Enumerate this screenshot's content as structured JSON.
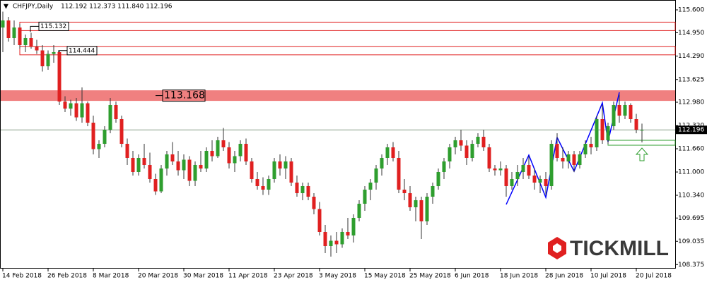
{
  "chart_data": {
    "type": "candlestick",
    "title": "CHFJPY,Daily",
    "ohlc_text": "112.192 112.373 111.840 112.196",
    "logo": "TICKMILL",
    "up_color": "#2e9e2e",
    "down_color": "#e02020",
    "ylim": [
      108.26,
      115.88
    ],
    "yticks": [
      {
        "value": 115.6,
        "label": "115.600"
      },
      {
        "value": 114.95,
        "label": "114.950"
      },
      {
        "value": 114.29,
        "label": "114.290"
      },
      {
        "value": 113.625,
        "label": "113.625"
      },
      {
        "value": 112.98,
        "label": "112.980"
      },
      {
        "value": 112.32,
        "label": "112.320"
      },
      {
        "value": 111.66,
        "label": "111.660"
      },
      {
        "value": 111,
        "label": "111.000"
      },
      {
        "value": 110.34,
        "label": "110.340"
      },
      {
        "value": 109.695,
        "label": "109.695"
      },
      {
        "value": 109.035,
        "label": "109.035"
      },
      {
        "value": 108.375,
        "label": "108.375"
      }
    ],
    "current_price": {
      "value": 112.196,
      "label": "112.196"
    },
    "levels": [
      {
        "value": 115.132,
        "label": "115.132",
        "style": "outline",
        "color": "#e02020"
      },
      {
        "value": 114.444,
        "label": "114.444",
        "style": "outline",
        "color": "#e02020"
      },
      {
        "value": 113.168,
        "label": "113.168",
        "style": "filled",
        "color": "#f08080"
      }
    ],
    "categories": [
      "14 Feb 2018",
      null,
      null,
      null,
      null,
      null,
      null,
      null,
      "26 Feb 2018",
      null,
      null,
      null,
      null,
      null,
      null,
      null,
      "8 Mar 2018",
      null,
      null,
      null,
      null,
      null,
      null,
      null,
      "20 Mar 2018",
      null,
      null,
      null,
      null,
      null,
      null,
      null,
      "30 Mar 2018",
      null,
      null,
      null,
      null,
      null,
      null,
      null,
      "11 Apr 2018",
      null,
      null,
      null,
      null,
      null,
      null,
      null,
      "23 Apr 2018",
      null,
      null,
      null,
      null,
      null,
      null,
      null,
      "3 May 2018",
      null,
      null,
      null,
      null,
      null,
      null,
      null,
      "15 May 2018",
      null,
      null,
      null,
      null,
      null,
      null,
      null,
      "25 May 2018",
      null,
      null,
      null,
      null,
      null,
      null,
      null,
      "6 Jun 2018",
      null,
      null,
      null,
      null,
      null,
      null,
      null,
      "18 Jun 2018",
      null,
      null,
      null,
      null,
      null,
      null,
      null,
      "28 Jun 2018",
      null,
      null,
      null,
      null,
      null,
      null,
      null,
      "10 Jul 2018",
      null,
      null,
      null,
      null,
      null,
      null,
      null,
      "20 Jul 2018",
      null
    ],
    "open": [
      115.1,
      115.3,
      114.8,
      115.1,
      114.6,
      114.8,
      114.55,
      114.45,
      114.0,
      114.35,
      114.4,
      113.0,
      112.8,
      112.95,
      112.55,
      112.95,
      112.4,
      111.65,
      111.8,
      112.2,
      112.9,
      112.5,
      111.8,
      111.4,
      111.0,
      111.4,
      111.2,
      110.8,
      110.45,
      111.1,
      111.5,
      111.3,
      111.05,
      111.35,
      110.75,
      111.2,
      111.1,
      111.6,
      111.45,
      111.9,
      111.7,
      111.25,
      111.45,
      111.8,
      111.3,
      110.8,
      110.6,
      110.5,
      110.8,
      111.3,
      111.1,
      111.3,
      110.7,
      110.4,
      110.6,
      110.3,
      109.95,
      109.3,
      108.9,
      109.05,
      108.95,
      109.3,
      109.2,
      109.7,
      110.1,
      110.5,
      110.7,
      111.1,
      111.4,
      111.7,
      111.4,
      110.5,
      110.4,
      110.0,
      110.2,
      109.6,
      110.3,
      110.6,
      111.0,
      111.3,
      111.7,
      111.9,
      111.75,
      111.4,
      111.8,
      112.0,
      111.7,
      111.1,
      111.05,
      111.1,
      110.6,
      110.8,
      111.0,
      111.2,
      110.9,
      110.7,
      110.8,
      110.6,
      111.8,
      111.4,
      111.3,
      111.5,
      111.2,
      111.5,
      111.8,
      111.7,
      112.5,
      111.9,
      112.3,
      112.9,
      112.6,
      112.9,
      112.5,
      112.192
    ],
    "high": [
      115.55,
      115.4,
      115.3,
      115.2,
      114.9,
      114.95,
      114.75,
      114.6,
      114.45,
      114.6,
      114.45,
      113.15,
      113.05,
      113.1,
      113.4,
      113.0,
      112.6,
      111.9,
      112.3,
      113.1,
      113.0,
      112.6,
      111.95,
      111.6,
      111.5,
      111.8,
      111.55,
      110.95,
      111.2,
      111.6,
      111.85,
      111.6,
      111.5,
      111.45,
      111.3,
      111.6,
      111.7,
      111.9,
      112.0,
      112.25,
      111.85,
      111.6,
      111.9,
      111.95,
      111.4,
      111.0,
      110.85,
      110.9,
      111.4,
      111.5,
      111.45,
      111.4,
      110.9,
      110.7,
      110.7,
      110.4,
      110.15,
      109.5,
      109.2,
      109.3,
      109.4,
      109.7,
      109.8,
      110.2,
      110.6,
      110.8,
      111.2,
      111.5,
      111.8,
      111.85,
      111.6,
      110.8,
      110.6,
      110.3,
      110.3,
      110.4,
      110.7,
      111.1,
      111.4,
      111.8,
      112.0,
      112.2,
      111.9,
      111.9,
      112.1,
      112.2,
      111.8,
      111.2,
      111.3,
      111.2,
      111.0,
      111.2,
      111.4,
      111.45,
      111.1,
      110.9,
      111.0,
      111.9,
      112.1,
      111.7,
      111.6,
      111.6,
      111.6,
      111.9,
      112.0,
      112.6,
      112.9,
      112.4,
      113.0,
      113.2,
      113.0,
      112.95,
      112.65,
      112.373
    ],
    "low": [
      114.4,
      114.7,
      114.6,
      114.5,
      114.4,
      114.5,
      114.35,
      113.85,
      113.9,
      114.1,
      112.9,
      112.7,
      112.6,
      112.45,
      112.4,
      112.3,
      111.5,
      111.4,
      111.7,
      112.1,
      112.4,
      111.7,
      111.2,
      110.9,
      110.9,
      111.1,
      110.7,
      110.35,
      110.4,
      110.9,
      111.2,
      110.9,
      110.8,
      110.6,
      110.6,
      111.0,
      111.0,
      111.3,
      111.4,
      111.6,
      111.1,
      111.0,
      111.3,
      111.2,
      110.7,
      110.5,
      110.35,
      110.35,
      110.7,
      110.9,
      110.8,
      110.6,
      110.3,
      110.2,
      110.2,
      109.8,
      109.2,
      108.7,
      108.6,
      108.7,
      108.85,
      109.1,
      109.0,
      109.6,
      109.9,
      110.2,
      110.5,
      110.9,
      111.2,
      111.3,
      110.4,
      110.2,
      109.9,
      109.6,
      109.1,
      109.5,
      110.1,
      110.5,
      110.8,
      111.1,
      111.5,
      111.6,
      111.2,
      111.3,
      111.7,
      111.6,
      111.0,
      110.9,
      110.9,
      110.3,
      110.5,
      110.6,
      110.8,
      110.8,
      110.5,
      110.4,
      110.35,
      110.5,
      111.3,
      111.1,
      111.1,
      111.0,
      111.1,
      111.4,
      111.5,
      111.6,
      111.8,
      111.8,
      112.2,
      112.4,
      112.5,
      112.4,
      112.1,
      111.84
    ],
    "close": [
      115.3,
      114.8,
      115.1,
      114.6,
      114.8,
      114.55,
      114.45,
      114.0,
      114.35,
      114.4,
      113.0,
      112.8,
      112.95,
      112.55,
      112.95,
      112.4,
      111.65,
      111.8,
      112.2,
      112.9,
      112.5,
      111.8,
      111.4,
      111.0,
      111.4,
      111.2,
      110.8,
      110.45,
      111.1,
      111.5,
      111.3,
      111.05,
      111.35,
      110.75,
      111.2,
      111.1,
      111.6,
      111.45,
      111.9,
      111.7,
      111.25,
      111.45,
      111.8,
      111.3,
      110.8,
      110.6,
      110.5,
      110.8,
      111.3,
      111.1,
      111.3,
      110.7,
      110.4,
      110.6,
      110.3,
      109.95,
      109.3,
      108.9,
      109.05,
      108.95,
      109.3,
      109.2,
      109.7,
      110.1,
      110.5,
      110.7,
      111.1,
      111.4,
      111.7,
      111.4,
      110.5,
      110.4,
      110.0,
      110.2,
      109.6,
      110.3,
      110.6,
      111.0,
      111.3,
      111.7,
      111.9,
      111.75,
      111.4,
      111.8,
      112.0,
      111.7,
      111.1,
      111.05,
      111.1,
      110.6,
      110.8,
      111.0,
      111.2,
      110.9,
      110.7,
      110.8,
      110.6,
      111.8,
      111.4,
      111.3,
      111.5,
      111.2,
      111.5,
      111.8,
      111.7,
      112.5,
      111.9,
      112.3,
      112.9,
      112.6,
      112.9,
      112.5,
      112.2,
      112.196
    ]
  }
}
